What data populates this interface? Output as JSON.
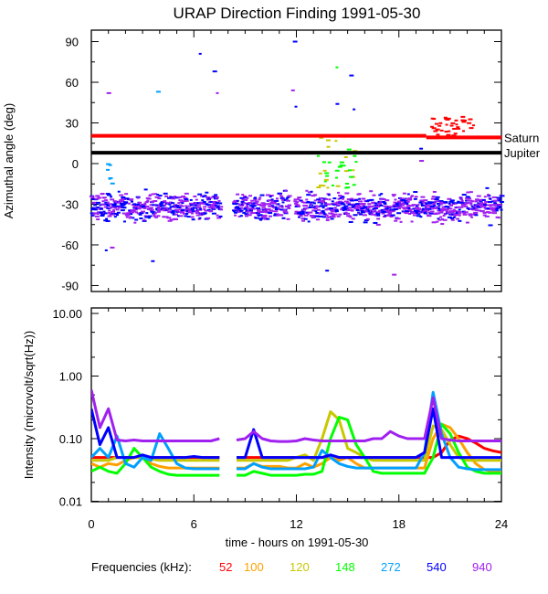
{
  "chart_data": [
    {
      "type": "scatter",
      "title": "URAP Direction Finding  1991-05-30",
      "xlabel": "",
      "ylabel": "Azimuthal angle (deg)",
      "xlim": [
        0,
        24
      ],
      "ylim": [
        -94,
        99
      ],
      "yticks": [
        90,
        60,
        30,
        0,
        -30,
        -60,
        -90
      ],
      "reference_lines": [
        {
          "label": "Saturn",
          "color": "#ff0000",
          "segments": [
            [
              0,
              19.6,
              20.5
            ],
            [
              19.6,
              24,
              19.3
            ]
          ]
        },
        {
          "label": "Jupiter",
          "color": "#000000",
          "segments": [
            [
              0,
              24,
              8
            ]
          ]
        }
      ],
      "main_cluster": {
        "angle_mean": -32,
        "angle_spread": 7,
        "colors": [
          "#a020f0",
          "#0000ff"
        ],
        "gaps_hours": [
          [
            7.6,
            8.3
          ],
          [
            11.6,
            11.9
          ]
        ],
        "density_per_hour": 28
      },
      "minor_clusters": [
        {
          "hours": [
            13.2,
            15.6
          ],
          "angle_range": [
            -18,
            22
          ],
          "colors": [
            "#00ff00",
            "#c8c800"
          ],
          "count": 40
        },
        {
          "hours": [
            19.9,
            22.4
          ],
          "angle_range": [
            18,
            35
          ],
          "colors": [
            "#ff0000"
          ],
          "count": 40
        },
        {
          "hours": [
            0.8,
            1.4
          ],
          "angle_range": [
            -18,
            0
          ],
          "colors": [
            "#00a0ff"
          ],
          "count": 6
        }
      ],
      "outliers": [
        [
          1.0,
          52,
          "#a020f0"
        ],
        [
          3.9,
          53,
          "#00a0ff"
        ],
        [
          6.4,
          81,
          "#0000ff"
        ],
        [
          7.2,
          68,
          "#0000ff"
        ],
        [
          7.4,
          52,
          "#a020f0"
        ],
        [
          11.9,
          90,
          "#0000ff"
        ],
        [
          11.8,
          54,
          "#a020f0"
        ],
        [
          12.0,
          42,
          "#0000ff"
        ],
        [
          14.4,
          71,
          "#00ff00"
        ],
        [
          15.2,
          65,
          "#0000ff"
        ],
        [
          14.4,
          44,
          "#0000ff"
        ],
        [
          15.4,
          40,
          "#0000ff"
        ],
        [
          3.6,
          -72,
          "#0000ff"
        ],
        [
          13.8,
          -79,
          "#0000ff"
        ],
        [
          17.7,
          -82,
          "#a020f0"
        ],
        [
          0.9,
          -64,
          "#0000ff"
        ],
        [
          1.2,
          -62,
          "#a020f0"
        ],
        [
          19.3,
          11,
          "#0000ff"
        ],
        [
          19.3,
          2,
          "#a020f0"
        ]
      ]
    },
    {
      "type": "line",
      "xlabel": "time - hours on 1991-05-30",
      "ylabel": "Intensity (microvolt/sqrt(Hz))",
      "yscale": "log",
      "ylim": [
        0.01,
        12
      ],
      "yticks": [
        "10.00",
        "1.00",
        "0.10",
        "0.01"
      ],
      "xlim": [
        0,
        24
      ],
      "xticks": [
        "0",
        "6",
        "12",
        "18",
        "24"
      ],
      "x_step_hours": 0.5,
      "series": [
        {
          "name": "52",
          "color": "#ff0000",
          "values": [
            0.05,
            0.05,
            0.05,
            0.05,
            0.05,
            0.05,
            0.05,
            0.05,
            0.05,
            0.05,
            0.05,
            0.05,
            0.05,
            0.05,
            0.05,
            0.05,
            null,
            0.05,
            0.05,
            0.05,
            0.05,
            0.05,
            0.05,
            0.05,
            0.05,
            0.05,
            0.05,
            0.05,
            0.05,
            0.05,
            0.05,
            0.05,
            0.05,
            0.05,
            0.05,
            0.05,
            0.05,
            0.05,
            0.05,
            0.05,
            0.05,
            0.06,
            0.095,
            0.11,
            0.1,
            0.085,
            0.07,
            0.064,
            0.06
          ]
        },
        {
          "name": "100",
          "color": "#ffa000",
          "values": [
            0.04,
            0.035,
            0.04,
            0.038,
            0.045,
            0.05,
            0.05,
            0.04,
            0.036,
            0.034,
            0.034,
            0.034,
            0.034,
            0.034,
            0.034,
            0.034,
            null,
            0.034,
            0.034,
            0.04,
            0.036,
            0.036,
            0.036,
            0.034,
            0.034,
            0.04,
            0.035,
            0.04,
            0.05,
            0.045,
            0.05,
            0.04,
            0.034,
            0.034,
            0.034,
            0.034,
            0.034,
            0.034,
            0.034,
            0.034,
            0.1,
            0.17,
            0.15,
            0.1,
            0.06,
            0.04,
            0.032,
            0.03,
            0.03
          ]
        },
        {
          "name": "120",
          "color": "#c8c800",
          "values": [
            0.045,
            0.045,
            0.045,
            0.05,
            0.05,
            0.05,
            0.05,
            0.047,
            0.045,
            0.045,
            0.045,
            0.045,
            0.045,
            0.045,
            0.045,
            0.045,
            null,
            0.045,
            0.045,
            0.045,
            0.045,
            0.045,
            0.045,
            0.045,
            0.05,
            0.055,
            0.045,
            0.1,
            0.27,
            0.2,
            0.07,
            0.06,
            0.05,
            0.045,
            0.045,
            0.045,
            0.045,
            0.045,
            0.045,
            0.045,
            0.16,
            0.14,
            0.08,
            0.05,
            0.045,
            0.045,
            0.045,
            0.045,
            0.045
          ]
        },
        {
          "name": "148",
          "color": "#00ff00",
          "values": [
            0.03,
            0.035,
            0.03,
            0.028,
            0.04,
            0.07,
            0.05,
            0.035,
            0.03,
            0.027,
            0.026,
            0.026,
            0.026,
            0.026,
            0.026,
            0.026,
            null,
            0.026,
            0.026,
            0.03,
            0.028,
            0.026,
            0.026,
            0.026,
            0.026,
            0.027,
            0.027,
            0.03,
            0.1,
            0.22,
            0.2,
            0.08,
            0.05,
            0.03,
            0.028,
            0.028,
            0.028,
            0.028,
            0.028,
            0.028,
            0.05,
            0.17,
            0.12,
            0.06,
            0.035,
            0.03,
            0.028,
            0.028,
            0.028
          ]
        },
        {
          "name": "272",
          "color": "#00a0ff",
          "values": [
            0.05,
            0.07,
            0.05,
            0.11,
            0.04,
            0.035,
            0.05,
            0.045,
            0.12,
            0.07,
            0.04,
            0.034,
            0.033,
            0.033,
            0.033,
            0.033,
            null,
            0.033,
            0.033,
            0.04,
            0.035,
            0.033,
            0.033,
            0.033,
            0.033,
            0.033,
            0.035,
            0.065,
            0.05,
            0.04,
            0.036,
            0.034,
            0.034,
            0.034,
            0.034,
            0.034,
            0.034,
            0.034,
            0.034,
            0.06,
            0.55,
            0.12,
            0.05,
            0.035,
            0.033,
            0.032,
            0.032,
            0.032,
            0.032
          ]
        },
        {
          "name": "540",
          "color": "#0000ff",
          "values": [
            0.3,
            0.08,
            0.15,
            0.05,
            0.05,
            0.05,
            0.055,
            0.05,
            0.05,
            0.05,
            0.05,
            0.05,
            0.052,
            0.05,
            0.05,
            0.05,
            null,
            0.05,
            0.05,
            0.14,
            0.05,
            0.05,
            0.05,
            0.05,
            0.05,
            0.05,
            0.05,
            0.05,
            0.055,
            0.05,
            0.05,
            0.05,
            0.05,
            0.05,
            0.05,
            0.05,
            0.05,
            0.05,
            0.05,
            0.06,
            0.3,
            0.05,
            0.05,
            0.05,
            0.05,
            0.05,
            0.05,
            0.05,
            0.05
          ]
        },
        {
          "name": "940",
          "color": "#a020f0",
          "values": [
            0.6,
            0.15,
            0.3,
            0.095,
            0.092,
            0.095,
            0.092,
            0.092,
            0.092,
            0.092,
            0.092,
            0.092,
            0.092,
            0.092,
            0.092,
            0.1,
            null,
            0.095,
            0.1,
            0.13,
            0.1,
            0.092,
            0.09,
            0.09,
            0.092,
            0.1,
            0.095,
            0.092,
            0.092,
            0.092,
            0.092,
            0.092,
            0.092,
            0.1,
            0.1,
            0.13,
            0.11,
            0.1,
            0.1,
            0.1,
            0.45,
            0.1,
            0.095,
            0.092,
            0.092,
            0.092,
            0.092,
            0.092,
            0.092
          ]
        }
      ]
    }
  ],
  "legend": {
    "label": "Frequencies (kHz):",
    "items": [
      "52",
      "100",
      "120",
      "148",
      "272",
      "540",
      "940"
    ]
  }
}
